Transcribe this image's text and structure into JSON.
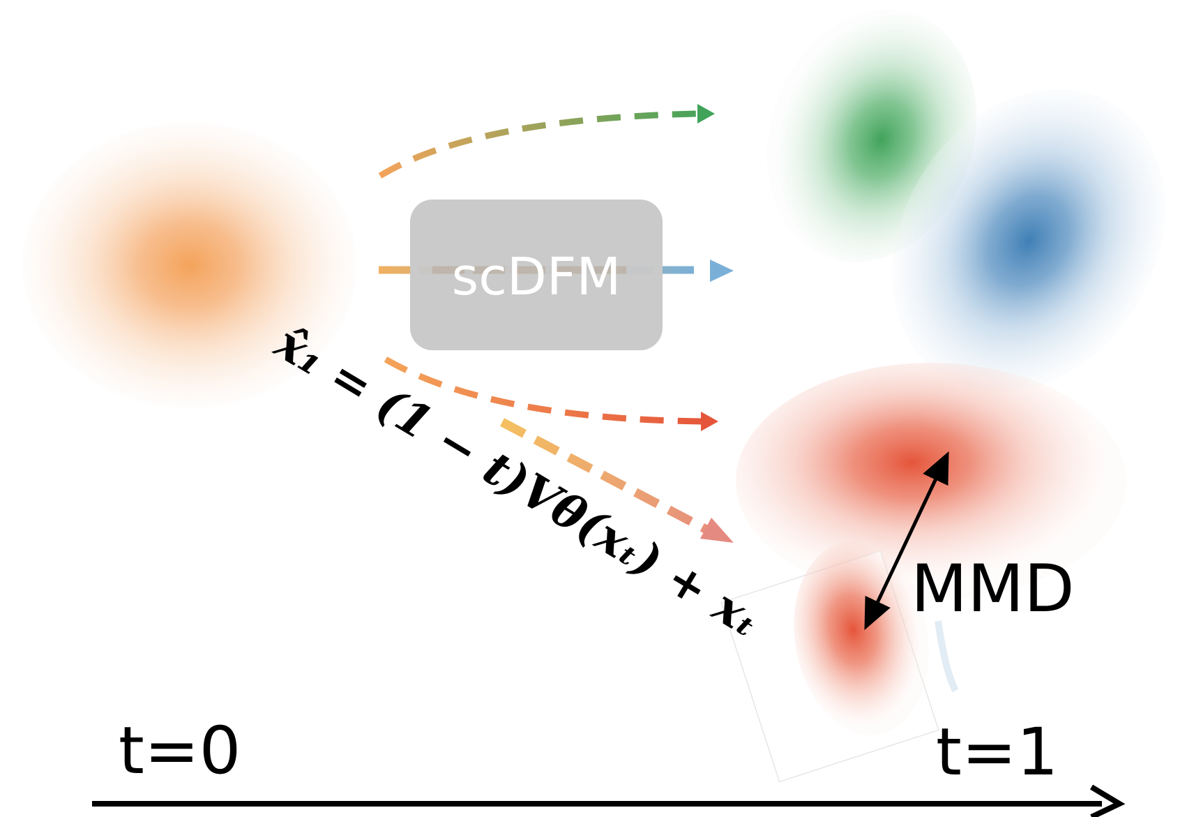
{
  "model_box": {
    "label": "scDFM",
    "fill": "#c8c8c8",
    "text_color": "#ffffff"
  },
  "formula": {
    "text": "x̂₁ = (1 − t)Vθ(xₜ) + xₜ"
  },
  "mmd": {
    "label": "MMD"
  },
  "time_axis": {
    "start_label": "t=0",
    "end_label": "t=1"
  },
  "colors": {
    "source": "#f4a35a",
    "target_green": "#41a35a",
    "target_blue": "#3f7fb5",
    "target_red": "#e5553a",
    "predicted_red": "#e5553a",
    "arrow_black": "#000000",
    "arrow_pink": "#e58a80"
  }
}
